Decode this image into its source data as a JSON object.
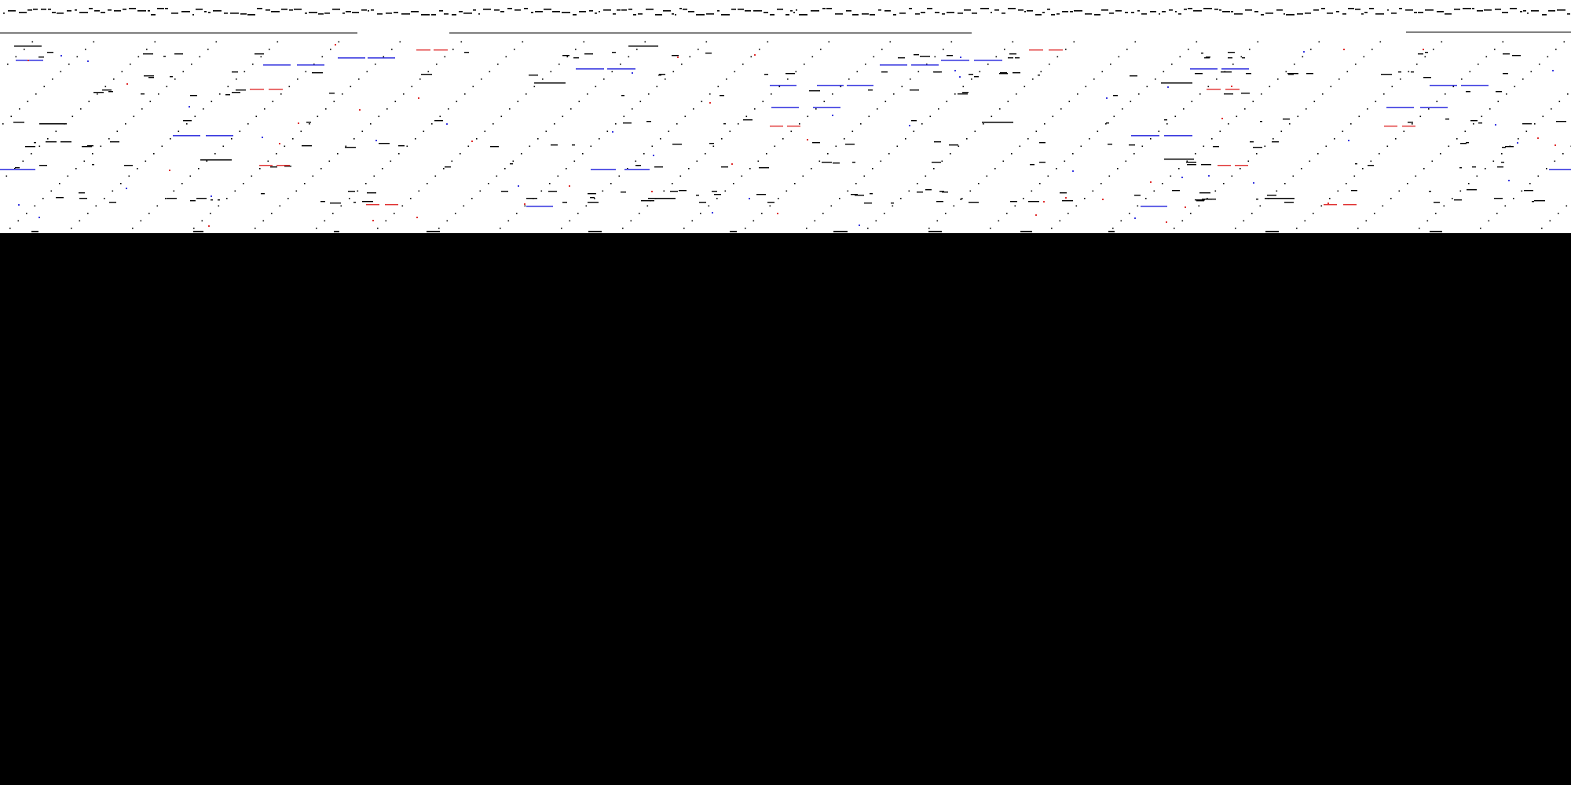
{
  "canvas": {
    "panel_background": "#ffffff",
    "page_background": "#000000"
  },
  "palette": {
    "ink": "#000000",
    "red": "#e03030",
    "blue": "#3a3ae0"
  },
  "dark_area": {
    "fill": "#000000"
  }
}
